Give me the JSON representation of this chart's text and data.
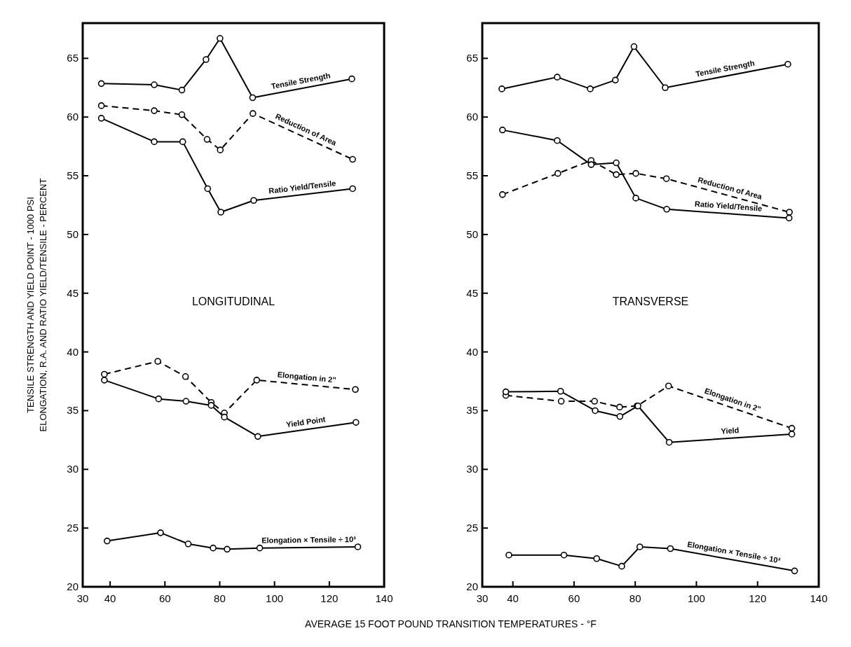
{
  "chart_data": [
    {
      "type": "line",
      "xlabel": "AVERAGE  15  FOOT  POUND  TRANSITION  TEMPERATURES - °F",
      "ylabel": "TENSILE  STRENGTH  AND  YIELD  POINT - 1000 PSI\nELONGATION, R.A. AND RATIO  YIELD/TENSILE - PERCENT",
      "annotations": [
        "LONGITUDINAL"
      ],
      "xlim": [
        30,
        140
      ],
      "ylim": [
        20,
        68
      ],
      "xticks": [
        30,
        40,
        60,
        80,
        100,
        120,
        140
      ],
      "yticks": [
        20,
        25,
        30,
        35,
        40,
        45,
        50,
        55,
        60,
        65
      ],
      "grid": false,
      "marker": "circle",
      "series": [
        {
          "name": "Tensile Strength",
          "color": "#000000",
          "line_style": "solid",
          "x": [
            36.8,
            56.1,
            66.2,
            75.0,
            80.1,
            92.0,
            128.2
          ],
          "values": [
            62.85,
            62.75,
            62.3,
            64.9,
            66.7,
            61.65,
            63.25
          ]
        },
        {
          "name": "Reduction of Area",
          "color": "#000000",
          "line_style": "dashed",
          "x": [
            36.8,
            56.1,
            66.2,
            75.4,
            80.2,
            92.1,
            128.5
          ],
          "values": [
            60.97,
            60.54,
            60.2,
            58.1,
            57.2,
            60.3,
            56.4
          ]
        },
        {
          "name": "Ratio  Yield/Tensile",
          "color": "#000000",
          "line_style": "solid",
          "x": [
            36.8,
            56.1,
            66.5,
            75.6,
            80.4,
            92.4,
            128.5
          ],
          "values": [
            59.9,
            57.9,
            57.9,
            53.9,
            51.9,
            52.9,
            53.9
          ]
        },
        {
          "name": "Elongation in 2\"",
          "color": "#000000",
          "line_style": "dashed",
          "x": [
            37.9,
            57.4,
            67.5,
            76.9,
            81.7,
            93.5,
            129.5
          ],
          "values": [
            38.1,
            39.2,
            37.9,
            35.7,
            34.8,
            37.6,
            36.8
          ]
        },
        {
          "name": "Yield Point",
          "color": "#000000",
          "line_style": "solid",
          "x": [
            37.9,
            57.7,
            67.7,
            76.9,
            81.7,
            93.9,
            129.7
          ],
          "values": [
            37.6,
            36.0,
            35.8,
            35.45,
            34.45,
            32.8,
            34.0
          ]
        },
        {
          "name": "Elongation × Tensile ÷ 10³",
          "color": "#000000",
          "line_style": "solid",
          "x": [
            38.9,
            58.4,
            68.5,
            77.6,
            82.7,
            94.6,
            130.4
          ],
          "values": [
            23.9,
            24.6,
            23.65,
            23.3,
            23.2,
            23.3,
            23.4
          ]
        }
      ]
    },
    {
      "type": "line",
      "annotations": [
        "TRANSVERSE"
      ],
      "xlim": [
        30,
        140
      ],
      "ylim": [
        20,
        68
      ],
      "xticks": [
        30,
        40,
        60,
        80,
        100,
        120,
        140
      ],
      "yticks": [
        20,
        25,
        30,
        35,
        40,
        45,
        50,
        55,
        60,
        65
      ],
      "grid": false,
      "marker": "circle",
      "series": [
        {
          "name": "Tensile Strength",
          "color": "#000000",
          "line_style": "solid",
          "x": [
            36.4,
            54.5,
            65.3,
            73.5,
            79.6,
            89.8,
            129.9
          ],
          "values": [
            62.4,
            63.4,
            62.4,
            63.15,
            66.0,
            62.5,
            64.5
          ]
        },
        {
          "name": "Reduction of Area",
          "color": "#000000",
          "line_style": "dashed",
          "x": [
            36.6,
            54.7,
            65.6,
            73.8,
            80.2,
            90.2,
            130.4
          ],
          "values": [
            53.4,
            55.2,
            56.3,
            55.1,
            55.2,
            54.75,
            51.9
          ]
        },
        {
          "name": "Ratio  Yield/Tensile",
          "color": "#000000",
          "line_style": "solid",
          "x": [
            36.6,
            54.5,
            65.6,
            73.8,
            80.2,
            90.3,
            130.3
          ],
          "values": [
            58.9,
            58.0,
            55.95,
            56.1,
            53.1,
            52.15,
            51.4
          ]
        },
        {
          "name": "Elongation in 2\"",
          "color": "#000000",
          "line_style": "dashed",
          "x": [
            37.7,
            55.8,
            66.7,
            74.9,
            80.6,
            90.9,
            131.2
          ],
          "values": [
            36.3,
            35.8,
            35.8,
            35.3,
            35.4,
            37.1,
            33.5
          ]
        },
        {
          "name": "Yield",
          "color": "#000000",
          "line_style": "solid",
          "x": [
            37.7,
            55.6,
            66.9,
            75.0,
            80.9,
            91.1,
            131.2
          ],
          "values": [
            36.6,
            36.65,
            35.0,
            34.5,
            35.4,
            32.3,
            33.0
          ]
        },
        {
          "name": "Elongation × Tensile ÷ 10³",
          "color": "#000000",
          "line_style": "solid",
          "x": [
            38.7,
            56.7,
            67.4,
            75.6,
            81.5,
            91.5,
            132.1
          ],
          "values": [
            22.7,
            22.7,
            22.4,
            21.75,
            23.4,
            23.25,
            21.35
          ]
        }
      ]
    }
  ]
}
